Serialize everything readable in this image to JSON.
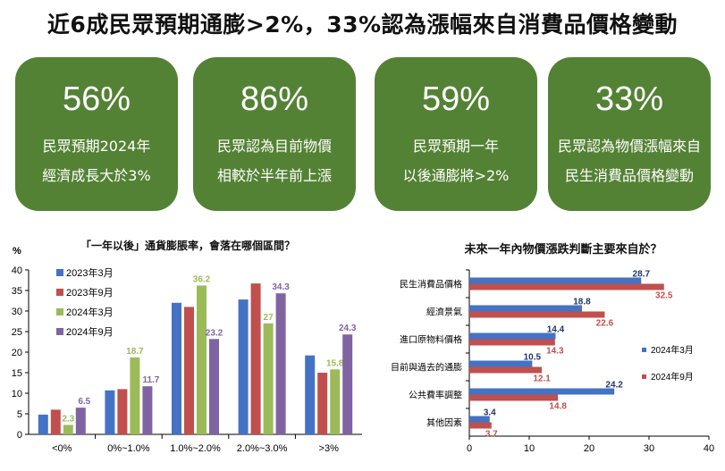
{
  "headline": "近6成民眾預期通膨>2%，33%認為漲幅來自消費品價格變動",
  "cards": [
    {
      "value": "56%",
      "line1": "民眾預期2024年",
      "line2": "經濟成長大於3%"
    },
    {
      "value": "86%",
      "line1": "民眾認為目前物價",
      "line2": "相較於半年前上漲"
    },
    {
      "value": "59%",
      "line1": "民眾預期一年",
      "line2": "以後通膨將>2%"
    },
    {
      "value": "33%",
      "line1": "民眾認為物價漲幅來自",
      "line2": "民生消費品價格變動"
    }
  ],
  "colors": {
    "card_bg": "#548235",
    "blue": "#4472C4",
    "red": "#C0504D",
    "green": "#9BBB59",
    "purple": "#8064A2"
  },
  "chart_data": [
    {
      "type": "bar",
      "title": "「一年以後」通貨膨脹率，會落在哪個區間？",
      "ylabel": "%",
      "ylim": [
        0,
        40
      ],
      "yticks": [
        0,
        5,
        10,
        15,
        20,
        25,
        30,
        35,
        40
      ],
      "categories": [
        "<0%",
        "0%~1.0%",
        "1.0%~2.0%",
        "2.0%~3.0%",
        ">3%"
      ],
      "series": [
        {
          "name": "2023年3月",
          "color": "#4472C4",
          "values": [
            4.8,
            10.7,
            32.0,
            32.8,
            19.2
          ],
          "labels": [
            "",
            "",
            "",
            "",
            ""
          ]
        },
        {
          "name": "2023年9月",
          "color": "#C0504D",
          "values": [
            6.0,
            11.0,
            31.0,
            36.7,
            15.0
          ],
          "labels": [
            "",
            "",
            "",
            "",
            ""
          ]
        },
        {
          "name": "2024年3月",
          "color": "#9BBB59",
          "values": [
            2.3,
            18.7,
            36.2,
            27.0,
            15.8
          ],
          "labels": [
            "2.3",
            "18.7",
            "36.2",
            "27",
            "15.8"
          ]
        },
        {
          "name": "2024年9月",
          "color": "#8064A2",
          "values": [
            6.5,
            11.7,
            23.2,
            34.3,
            24.3
          ],
          "labels": [
            "6.5",
            "11.7",
            "23.2",
            "34.3",
            "24.3"
          ]
        }
      ],
      "legend": "top-left"
    },
    {
      "type": "bar",
      "orientation": "horizontal",
      "title": "未來一年內物價漲跌判斷主要來自於？",
      "xlim": [
        0,
        40
      ],
      "xticks": [
        0,
        10,
        20,
        30,
        40
      ],
      "categories": [
        "民生消費品價格",
        "經濟景氣",
        "進口原物料價格",
        "目前與過去的通膨",
        "公共費率調整",
        "其他因素"
      ],
      "series": [
        {
          "name": "2024年3月",
          "color": "#4472C4",
          "values": [
            28.7,
            18.8,
            14.4,
            10.5,
            24.2,
            3.4
          ]
        },
        {
          "name": "2024年9月",
          "color": "#C0504D",
          "values": [
            32.5,
            22.6,
            14.3,
            12.1,
            14.8,
            3.7
          ]
        }
      ],
      "legend": "right"
    }
  ]
}
